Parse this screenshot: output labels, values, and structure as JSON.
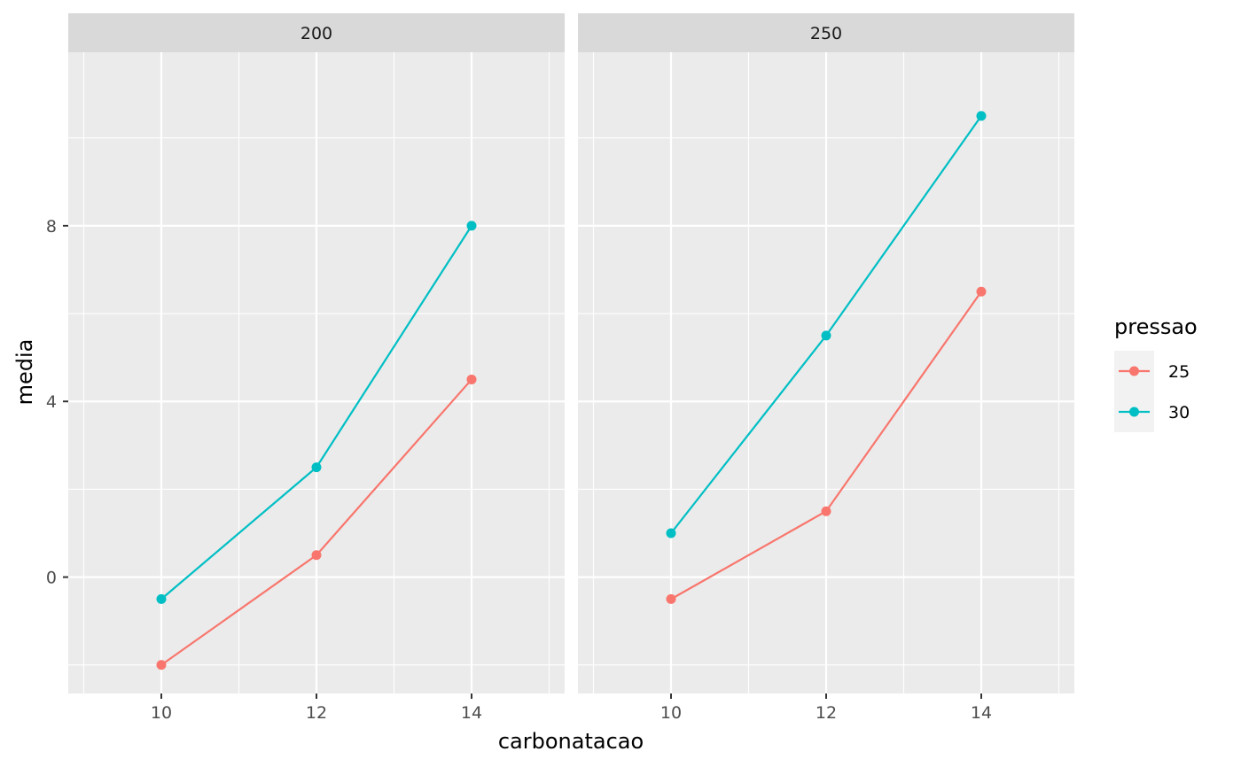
{
  "chart_data": {
    "type": "line",
    "xlabel": "carbonatacao",
    "ylabel": "media",
    "x_ticks": [
      10,
      12,
      14
    ],
    "y_ticks": [
      0,
      4,
      8
    ],
    "xlim": [
      8.8,
      15.2
    ],
    "ylim": [
      -2.65,
      11.95
    ],
    "grid": true,
    "legend": {
      "title": "pressao",
      "placement": "right",
      "entries": [
        "25",
        "30"
      ]
    },
    "series_colors": {
      "25": "#F8766D",
      "30": "#00BFC4"
    },
    "panels": [
      {
        "strip": "200",
        "series": [
          {
            "name": "25",
            "x": [
              10,
              12,
              14
            ],
            "values": [
              -2.0,
              0.5,
              4.5
            ]
          },
          {
            "name": "30",
            "x": [
              10,
              12,
              14
            ],
            "values": [
              -0.5,
              2.5,
              8.0
            ]
          }
        ]
      },
      {
        "strip": "250",
        "series": [
          {
            "name": "25",
            "x": [
              10,
              12,
              14
            ],
            "values": [
              -0.5,
              1.5,
              6.5
            ]
          },
          {
            "name": "30",
            "x": [
              10,
              12,
              14
            ],
            "values": [
              1.0,
              5.5,
              10.5
            ]
          }
        ]
      }
    ]
  }
}
